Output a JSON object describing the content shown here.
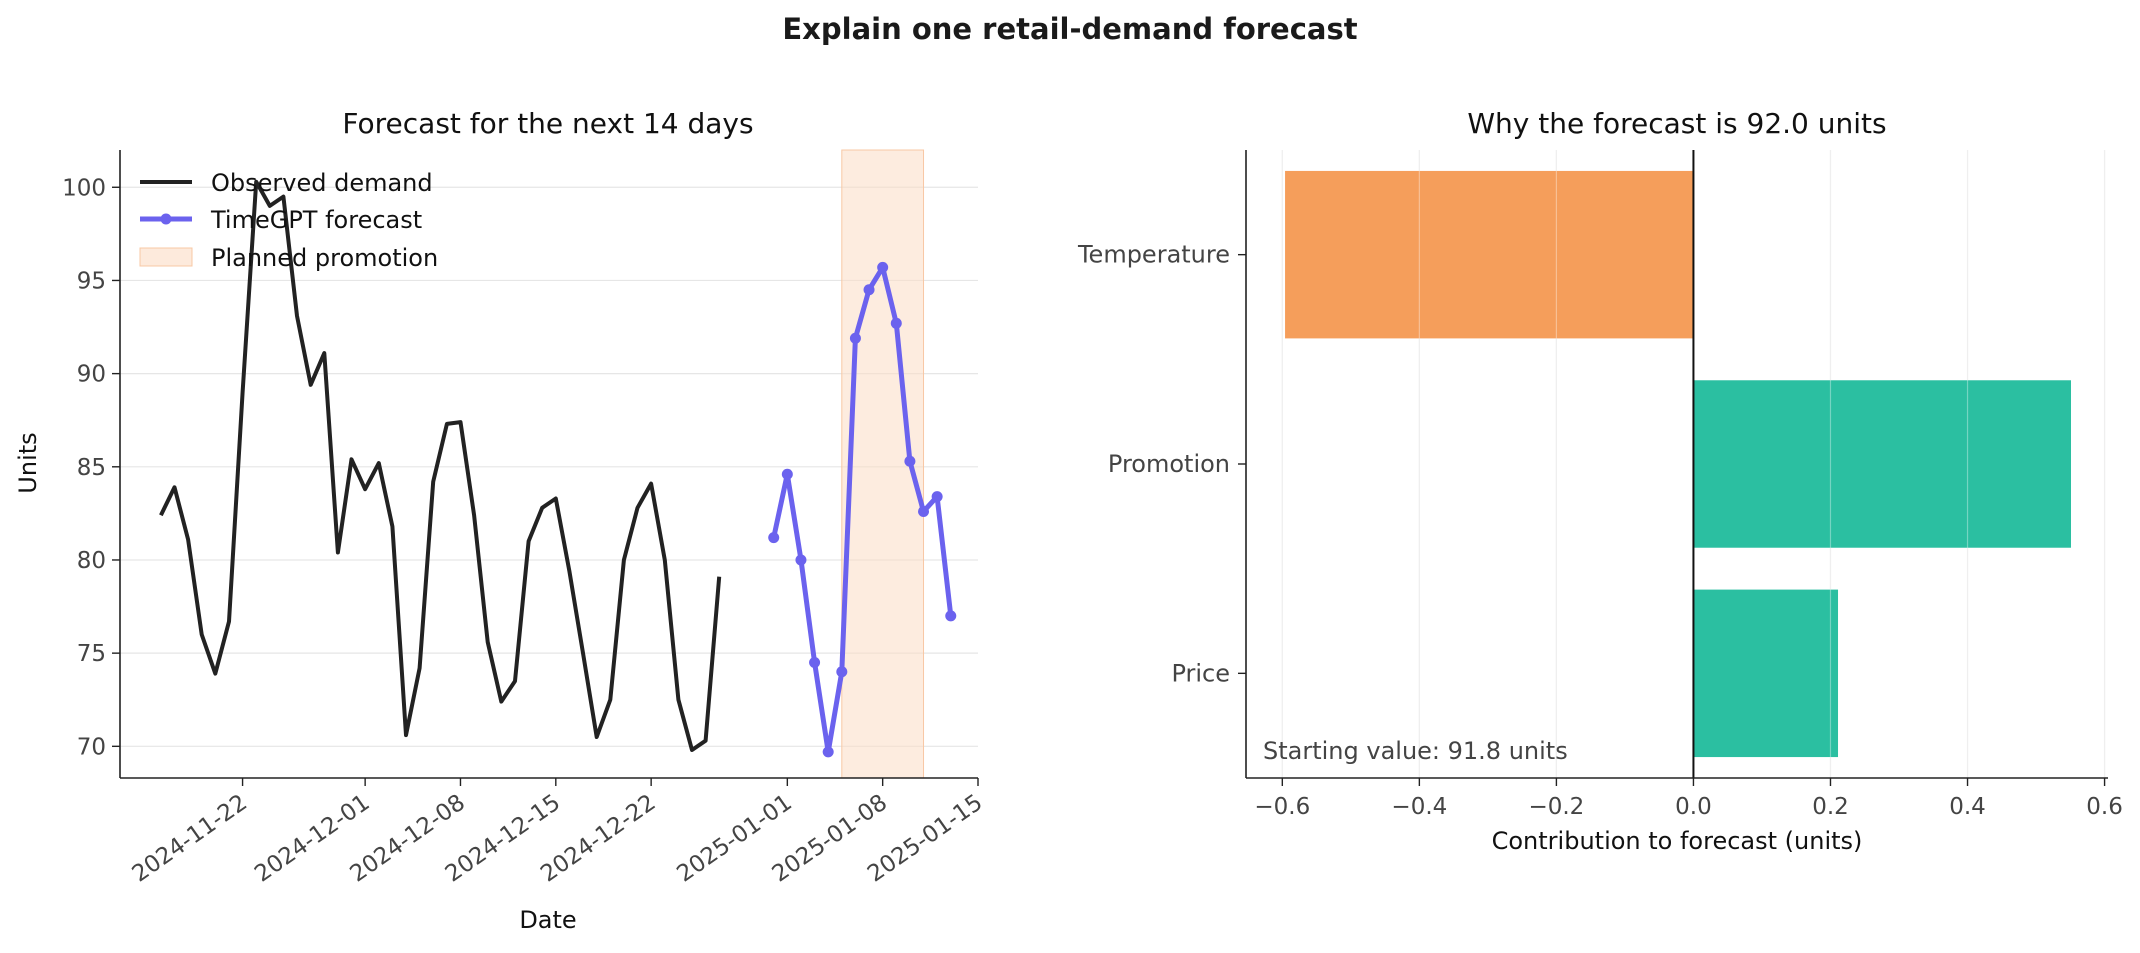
{
  "suptitle": "Explain one retail-demand forecast",
  "chart_data": [
    {
      "type": "line",
      "title": "Forecast for the next 14 days",
      "xlabel": "Date",
      "ylabel": "Units",
      "xlim": [
        "2024-11-13",
        "2025-01-15"
      ],
      "ylim": [
        68.3,
        102.0
      ],
      "x_ticks": [
        "2024-11-22",
        "2024-12-01",
        "2024-12-08",
        "2024-12-15",
        "2024-12-22",
        "2025-01-01",
        "2025-01-08",
        "2025-01-15"
      ],
      "y_ticks": [
        70,
        75,
        80,
        85,
        90,
        95,
        100
      ],
      "grid": "y",
      "legend": {
        "placement": "top-left"
      },
      "series": [
        {
          "name": "Observed demand",
          "color": "#222222",
          "start_date": "2024-11-16",
          "values": [
            82.4,
            83.9,
            81.1,
            76.0,
            73.9,
            76.7,
            89.0,
            100.3,
            99.0,
            99.5,
            93.1,
            89.4,
            91.1,
            80.4,
            85.4,
            83.8,
            85.2,
            81.8,
            70.6,
            74.2,
            84.2,
            87.3,
            87.4,
            82.4,
            75.6,
            72.4,
            73.5,
            81.0,
            82.8,
            83.3,
            79.4,
            75.0,
            70.5,
            72.5,
            80.0,
            82.8,
            84.1,
            80.0,
            72.5,
            69.8,
            70.3,
            79.1
          ]
        },
        {
          "name": "TimeGPT forecast",
          "color": "#6b62ee",
          "start_date": "2024-12-31",
          "values": [
            81.2,
            84.6,
            80.0,
            74.5,
            69.7,
            74.0,
            91.9,
            94.5,
            95.7,
            92.7,
            85.3,
            82.6,
            83.4,
            77.0
          ]
        }
      ],
      "shaded_region": {
        "name": "Planned promotion",
        "color": "#fcdcc4",
        "x_start": "2025-01-05",
        "x_end": "2025-01-11"
      }
    },
    {
      "type": "bar",
      "orientation": "horizontal",
      "title": "Why the forecast is 92.0 units",
      "xlabel": "Contribution to forecast (units)",
      "xlim": [
        -0.653,
        0.605
      ],
      "x_ticks": [
        -0.6,
        -0.4,
        -0.2,
        0.0,
        0.2,
        0.4,
        0.6
      ],
      "grid": "x",
      "categories": [
        "Temperature",
        "Promotion",
        "Price"
      ],
      "values": [
        -0.596,
        0.551,
        0.211
      ],
      "colors": [
        "#f59e5b",
        "#2bbfa1",
        "#2bbfa1"
      ],
      "annotation": "Starting value: 91.8 units"
    }
  ]
}
